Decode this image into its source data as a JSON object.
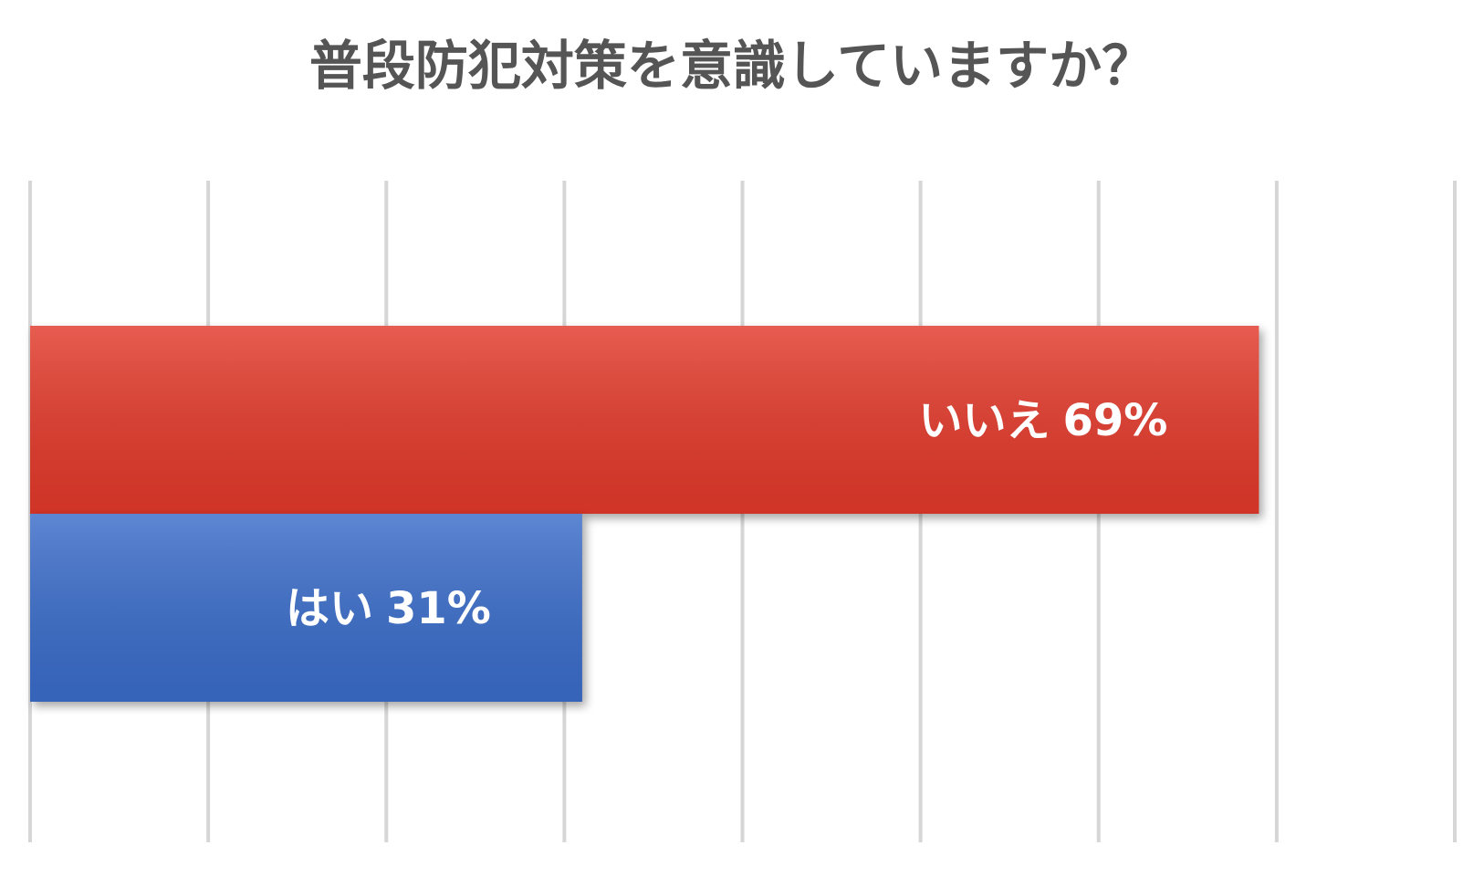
{
  "chart_data": {
    "type": "bar",
    "orientation": "horizontal",
    "title": "普段防犯対策を意識していますか？",
    "categories": [
      "いいえ",
      "はい"
    ],
    "values": [
      69,
      31
    ],
    "value_labels": [
      "69%",
      "31%"
    ],
    "colors": [
      "#e2392a",
      "#3a6cc9"
    ],
    "xlim": [
      0,
      80
    ],
    "xticks": [
      0,
      10,
      20,
      30,
      40,
      50,
      60,
      70,
      80
    ],
    "grid": true
  }
}
